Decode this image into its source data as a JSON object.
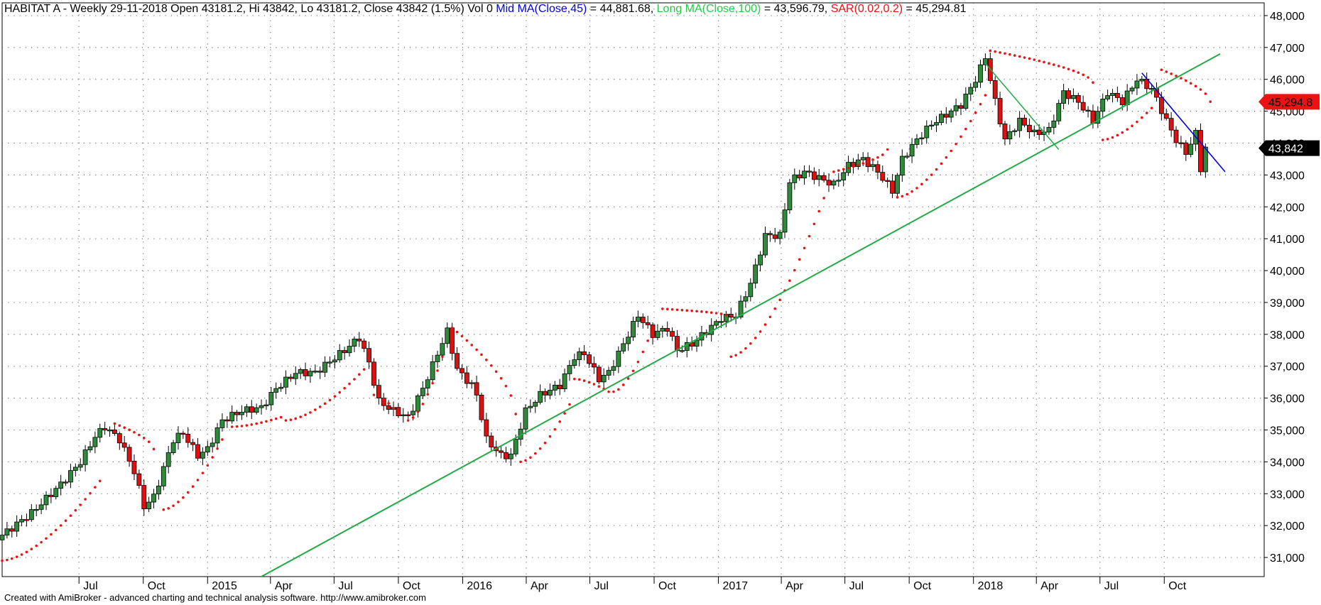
{
  "header": {
    "symbol_info": "HABITAT A - Weekly 29-11-2018 Open 43181.2, Hi 43842, Lo 43181.2, Close 43842 (1.5%) Vol 0",
    "mid_label": "Mid MA(Close,45)",
    "mid_value": " = 44,881.68, ",
    "long_label": "Long MA(Close,100)",
    "long_value": " = 43,596.79, ",
    "sar_label": "SAR(0.02,0.2)",
    "sar_value": " = 45,294.81"
  },
  "footer": "Created with AmiBroker - advanced charting and technical analysis software. http://www.amibroker.com",
  "colors": {
    "up": "#2e8b3a",
    "down": "#dd1111",
    "mid_ma": "#0000dd",
    "long_ma": "#22aa44",
    "sar": "#ee1111",
    "grid": "#777777"
  },
  "chart_data": {
    "type": "candlestick",
    "y_axis": {
      "ticks": [
        31000,
        32000,
        33000,
        34000,
        35000,
        36000,
        37000,
        38000,
        39000,
        40000,
        41000,
        42000,
        43000,
        44000,
        45000,
        46000,
        47000,
        48000
      ],
      "tick_labels": [
        "31,000",
        "32,000",
        "33,000",
        "34,000",
        "35,000",
        "36,000",
        "37,000",
        "38,000",
        "39,000",
        "40,000",
        "41,000",
        "42,000",
        "43,000",
        "44,000",
        "45,000",
        "46,000",
        "47,000",
        "48,000"
      ],
      "range": [
        30400,
        48400
      ]
    },
    "x_axis": {
      "start": "2014-03-13",
      "end": "2019-02-21",
      "labels": [
        {
          "date": "2014-07-01",
          "label": "Jul",
          "year": false
        },
        {
          "date": "2014-10-01",
          "label": "Oct",
          "year": false
        },
        {
          "date": "2015-01-01",
          "label": "2015",
          "year": true
        },
        {
          "date": "2015-04-01",
          "label": "Apr",
          "year": false
        },
        {
          "date": "2015-07-01",
          "label": "Jul",
          "year": false
        },
        {
          "date": "2015-10-01",
          "label": "Oct",
          "year": false
        },
        {
          "date": "2016-01-01",
          "label": "2016",
          "year": true
        },
        {
          "date": "2016-04-01",
          "label": "Apr",
          "year": false
        },
        {
          "date": "2016-07-01",
          "label": "Jul",
          "year": false
        },
        {
          "date": "2016-10-01",
          "label": "Oct",
          "year": false
        },
        {
          "date": "2017-01-01",
          "label": "2017",
          "year": true
        },
        {
          "date": "2017-04-01",
          "label": "Apr",
          "year": false
        },
        {
          "date": "2017-07-01",
          "label": "Jul",
          "year": false
        },
        {
          "date": "2017-10-01",
          "label": "Oct",
          "year": false
        },
        {
          "date": "2018-01-01",
          "label": "2018",
          "year": true
        },
        {
          "date": "2018-04-01",
          "label": "Apr",
          "year": false
        },
        {
          "date": "2018-07-01",
          "label": "Jul",
          "year": false
        },
        {
          "date": "2018-10-01",
          "label": "Oct",
          "year": false
        }
      ]
    },
    "close_anchors": [
      [
        "2014-03-13",
        31700
      ],
      [
        "2014-04-24",
        32400
      ],
      [
        "2014-06-05",
        33300
      ],
      [
        "2014-07-03",
        34000
      ],
      [
        "2014-07-24",
        34800
      ],
      [
        "2014-08-07",
        35100
      ],
      [
        "2014-08-28",
        34700
      ],
      [
        "2014-09-18",
        33700
      ],
      [
        "2014-10-02",
        32600
      ],
      [
        "2014-10-16",
        32900
      ],
      [
        "2014-10-30",
        33800
      ],
      [
        "2014-11-13",
        34700
      ],
      [
        "2014-11-27",
        34900
      ],
      [
        "2014-12-18",
        34200
      ],
      [
        "2015-01-01",
        34400
      ],
      [
        "2015-01-22",
        35300
      ],
      [
        "2015-02-19",
        35600
      ],
      [
        "2015-03-19",
        35700
      ],
      [
        "2015-04-09",
        36300
      ],
      [
        "2015-05-07",
        36800
      ],
      [
        "2015-06-04",
        36800
      ],
      [
        "2015-07-16",
        37500
      ],
      [
        "2015-08-06",
        37900
      ],
      [
        "2015-08-20",
        37100
      ],
      [
        "2015-09-03",
        35900
      ],
      [
        "2015-09-24",
        35600
      ],
      [
        "2015-10-15",
        35400
      ],
      [
        "2015-11-05",
        36300
      ],
      [
        "2015-11-26",
        37400
      ],
      [
        "2015-12-10",
        38100
      ],
      [
        "2015-12-24",
        36900
      ],
      [
        "2016-01-14",
        36400
      ],
      [
        "2016-01-21",
        36100
      ],
      [
        "2016-02-04",
        34700
      ],
      [
        "2016-02-25",
        34200
      ],
      [
        "2016-03-10",
        34200
      ],
      [
        "2016-03-31",
        35600
      ],
      [
        "2016-04-21",
        36100
      ],
      [
        "2016-05-19",
        36400
      ],
      [
        "2016-06-09",
        37300
      ],
      [
        "2016-06-23",
        37400
      ],
      [
        "2016-07-14",
        36600
      ],
      [
        "2016-07-28",
        36800
      ],
      [
        "2016-08-18",
        37700
      ],
      [
        "2016-09-08",
        38600
      ],
      [
        "2016-09-29",
        38000
      ],
      [
        "2016-10-20",
        38200
      ],
      [
        "2016-11-03",
        37500
      ],
      [
        "2016-11-24",
        37700
      ],
      [
        "2016-12-15",
        38100
      ],
      [
        "2017-01-05",
        38500
      ],
      [
        "2017-01-26",
        38600
      ],
      [
        "2017-02-16",
        39600
      ],
      [
        "2017-03-09",
        41100
      ],
      [
        "2017-03-30",
        41100
      ],
      [
        "2017-04-13",
        42800
      ],
      [
        "2017-05-04",
        43100
      ],
      [
        "2017-05-25",
        42900
      ],
      [
        "2017-06-15",
        42700
      ],
      [
        "2017-07-06",
        43300
      ],
      [
        "2017-07-27",
        43500
      ],
      [
        "2017-08-17",
        43100
      ],
      [
        "2017-09-07",
        42500
      ],
      [
        "2017-09-21",
        43500
      ],
      [
        "2017-10-12",
        44100
      ],
      [
        "2017-11-02",
        44600
      ],
      [
        "2017-11-23",
        44900
      ],
      [
        "2017-12-14",
        45200
      ],
      [
        "2018-01-04",
        46000
      ],
      [
        "2018-01-18",
        46700
      ],
      [
        "2018-02-01",
        45300
      ],
      [
        "2018-02-15",
        44100
      ],
      [
        "2018-03-08",
        44700
      ],
      [
        "2018-03-29",
        44300
      ],
      [
        "2018-04-19",
        44400
      ],
      [
        "2018-05-10",
        45600
      ],
      [
        "2018-05-31",
        45300
      ],
      [
        "2018-06-21",
        44700
      ],
      [
        "2018-07-12",
        45600
      ],
      [
        "2018-08-02",
        45300
      ],
      [
        "2018-08-23",
        46000
      ],
      [
        "2018-09-13",
        45700
      ],
      [
        "2018-10-04",
        44700
      ],
      [
        "2018-10-18",
        44100
      ],
      [
        "2018-11-01",
        43700
      ],
      [
        "2018-11-15",
        44300
      ],
      [
        "2018-11-22",
        43200
      ],
      [
        "2018-11-29",
        43842
      ]
    ],
    "long_ma_line": {
      "label": "Long MA(Close,100)",
      "points": [
        [
          "2015-03-19",
          30400
        ],
        [
          "2018-12-20",
          46800
        ]
      ]
    },
    "mid_ma_line": {
      "label": "Mid MA(Close,45)",
      "points": [
        [
          "2018-08-30",
          46200
        ],
        [
          "2018-12-27",
          43100
        ]
      ]
    },
    "swing_line": {
      "points": [
        [
          "2018-01-18",
          46500
        ],
        [
          "2018-05-03",
          43800
        ]
      ]
    },
    "sar_arcs": [
      {
        "from": "2014-03-13",
        "to": "2014-07-31",
        "start": 30900,
        "end": 33400,
        "side": "below"
      },
      {
        "from": "2014-08-21",
        "to": "2014-10-16",
        "start": 35200,
        "end": 34400,
        "side": "above"
      },
      {
        "from": "2014-10-30",
        "to": "2015-01-22",
        "start": 32500,
        "end": 34700,
        "side": "below"
      },
      {
        "from": "2015-02-05",
        "to": "2015-04-16",
        "start": 35100,
        "end": 35400,
        "side": "below"
      },
      {
        "from": "2015-04-23",
        "to": "2015-08-13",
        "start": 35300,
        "end": 36900,
        "side": "below"
      },
      {
        "from": "2015-08-27",
        "to": "2015-10-01",
        "start": 36100,
        "end": 35500,
        "side": "below"
      },
      {
        "from": "2015-10-15",
        "to": "2015-12-03",
        "start": 35300,
        "end": 37300,
        "side": "below"
      },
      {
        "from": "2015-12-17",
        "to": "2016-03-17",
        "start": 38200,
        "end": 35500,
        "side": "above"
      },
      {
        "from": "2016-03-24",
        "to": "2016-06-02",
        "start": 34000,
        "end": 35800,
        "side": "below"
      },
      {
        "from": "2016-06-09",
        "to": "2016-07-28",
        "start": 36600,
        "end": 36200,
        "side": "below"
      },
      {
        "from": "2016-08-04",
        "to": "2016-09-22",
        "start": 36200,
        "end": 37800,
        "side": "below"
      },
      {
        "from": "2016-10-13",
        "to": "2017-01-12",
        "start": 38800,
        "end": 38600,
        "side": "above"
      },
      {
        "from": "2017-01-19",
        "to": "2017-06-08",
        "start": 37300,
        "end": 42700,
        "side": "below"
      },
      {
        "from": "2017-06-15",
        "to": "2017-08-31",
        "start": 43100,
        "end": 43800,
        "side": "above"
      },
      {
        "from": "2017-09-14",
        "to": "2018-01-18",
        "start": 42300,
        "end": 45500,
        "side": "below"
      },
      {
        "from": "2018-01-25",
        "to": "2018-06-21",
        "start": 46900,
        "end": 45900,
        "side": "above"
      },
      {
        "from": "2018-07-05",
        "to": "2018-09-13",
        "start": 44100,
        "end": 45100,
        "side": "below"
      },
      {
        "from": "2018-09-27",
        "to": "2018-12-06",
        "start": 46300,
        "end": 45300,
        "side": "above"
      }
    ],
    "price_tags": [
      {
        "label": "45,294.8",
        "value": 45294.81,
        "color": "#ee1111",
        "text_color": "#000000"
      },
      {
        "label": "43,842",
        "value": 43842,
        "color": "#000000",
        "text_color": "#ffffff"
      }
    ]
  }
}
